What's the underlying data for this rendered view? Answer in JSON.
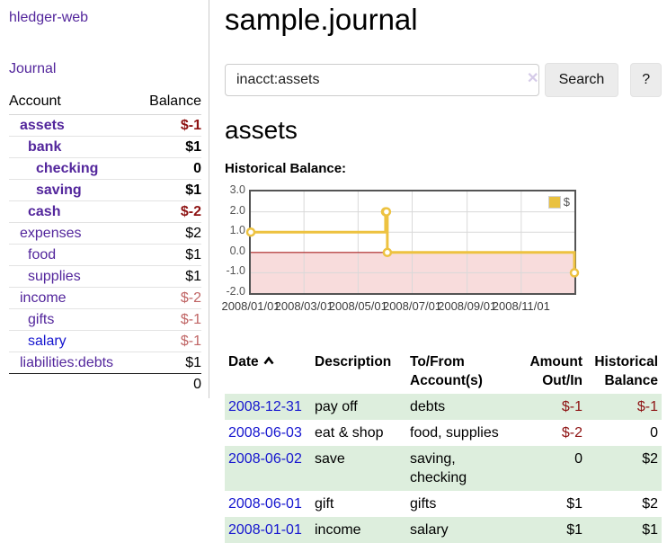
{
  "colors": {
    "link_purple": "#53269c",
    "link_blue": "#1515cf",
    "negative_strong": "#8e1313",
    "negative_soft": "#c06565",
    "row_green": "#ddeedd",
    "chart_line": "#edc240",
    "chart_negative_fill": "#f8dcdc",
    "chart_zero_line": "#aa2222"
  },
  "sidebar": {
    "app_title": "hledger-web",
    "journal_link": "Journal",
    "accounts": {
      "header_account": "Account",
      "header_balance": "Balance",
      "rows": [
        {
          "label": "assets",
          "balance": "$-1",
          "indent": 1,
          "bold": true,
          "balance_neg": "strong"
        },
        {
          "label": "bank",
          "balance": "$1",
          "indent": 2,
          "bold": true
        },
        {
          "label": "checking",
          "balance": "0",
          "indent": 3,
          "bold": true
        },
        {
          "label": "saving",
          "balance": "$1",
          "indent": 3,
          "bold": true
        },
        {
          "label": "cash",
          "balance": "$-2",
          "indent": 2,
          "bold": true,
          "balance_neg": "strong"
        },
        {
          "label": "expenses",
          "balance": "$2",
          "indent": 1
        },
        {
          "label": "food",
          "balance": "$1",
          "indent": 2
        },
        {
          "label": "supplies",
          "balance": "$1",
          "indent": 2
        },
        {
          "label": "income",
          "balance": "$-2",
          "indent": 1,
          "balance_neg": "soft"
        },
        {
          "label": "gifts",
          "balance": "$-1",
          "indent": 2,
          "balance_neg": "soft"
        },
        {
          "label": "salary",
          "balance": "$-1",
          "indent": 2,
          "link_color": "blue",
          "balance_neg": "soft"
        },
        {
          "label": "liabilities:debts",
          "balance": "$1",
          "indent": 1,
          "last": true
        }
      ],
      "total": "0"
    }
  },
  "main": {
    "title": "sample.journal",
    "search": {
      "value": "inacct:assets",
      "clear_icon": "✕",
      "button_label": "Search",
      "help_label": "?"
    },
    "account_heading": "assets",
    "chart_label": "Historical Balance:",
    "register": {
      "headers": {
        "date": "Date",
        "description": "Description",
        "accounts": "To/From\nAccount(s)",
        "amount": "Amount\nOut/In",
        "balance": "Historical\nBalance"
      },
      "rows": [
        {
          "date": "2008-12-31",
          "description": "pay off",
          "accounts": "debts",
          "amount": "$-1",
          "amount_negative": true,
          "balance": "$-1",
          "balance_negative": true
        },
        {
          "date": "2008-06-03",
          "description": "eat & shop",
          "accounts": "food, supplies",
          "amount": "$-2",
          "amount_negative": true,
          "balance": "0"
        },
        {
          "date": "2008-06-02",
          "description": "save",
          "accounts": "saving,\nchecking",
          "amount": "0",
          "balance": "$2"
        },
        {
          "date": "2008-06-01",
          "description": "gift",
          "accounts": "gifts",
          "amount": "$1",
          "balance": "$2"
        },
        {
          "date": "2008-01-01",
          "description": "income",
          "accounts": "salary",
          "amount": "$1",
          "balance": "$1"
        }
      ]
    }
  },
  "chart_data": {
    "type": "line",
    "title": "Historical Balance:",
    "legend": {
      "label": "$",
      "position": "top-right"
    },
    "x": [
      "2008-01-01",
      "2008-06-01",
      "2008-06-02",
      "2008-06-03",
      "2008-12-31"
    ],
    "x_days": [
      0,
      152,
      153,
      154,
      365
    ],
    "series": [
      {
        "name": "$",
        "values": [
          1,
          2,
          2,
          0,
          -1
        ],
        "color": "#edc240",
        "step": true,
        "points": true
      }
    ],
    "ylim": [
      -2,
      3
    ],
    "yticks": [
      3,
      2,
      1,
      0,
      -1,
      -2
    ],
    "ytick_labels": [
      "3.0",
      "2.0",
      "1.0",
      "0.0",
      "-1.0",
      "-2.0"
    ],
    "xticks": [
      {
        "day": 0,
        "label": "2008/01/01"
      },
      {
        "day": 60,
        "label": "2008/03/01"
      },
      {
        "day": 121,
        "label": "2008/05/01"
      },
      {
        "day": 182,
        "label": "2008/07/01"
      },
      {
        "day": 244,
        "label": "2008/09/01"
      },
      {
        "day": 305,
        "label": "2008/11/01"
      }
    ],
    "x_range_days": [
      0,
      365
    ],
    "grid": true,
    "negative_region_fill": "#f8dcdc",
    "zero_line_color": "#aa2222"
  }
}
